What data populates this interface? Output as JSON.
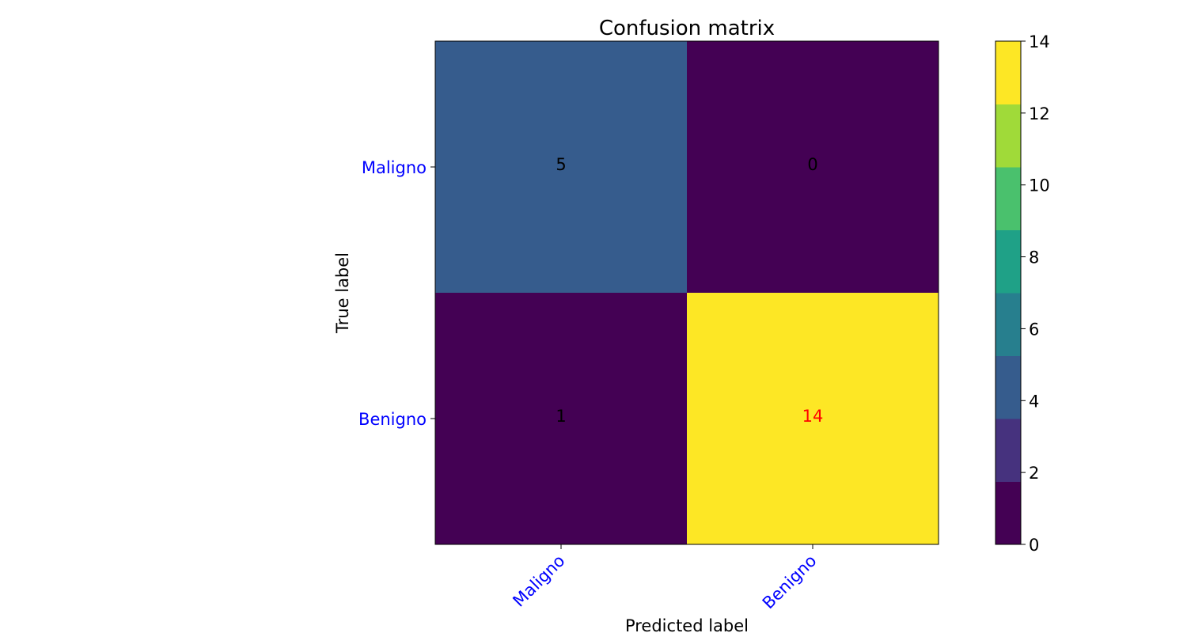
{
  "chart_data": {
    "type": "heatmap",
    "title": "Confusion matrix",
    "xlabel": "Predicted label",
    "ylabel": "True label",
    "x_categories": [
      "Maligno",
      "Benigno"
    ],
    "y_categories": [
      "Maligno",
      "Benigno"
    ],
    "matrix": [
      [
        5,
        0
      ],
      [
        1,
        14
      ]
    ],
    "colormap": "viridis",
    "colorbar": {
      "range": [
        0,
        14
      ],
      "ticks": [
        0,
        2,
        4,
        6,
        8,
        10,
        12,
        14
      ],
      "bands": [
        "#440154",
        "#46327e",
        "#365c8d",
        "#277f8e",
        "#1fa187",
        "#4ac16d",
        "#a0da39",
        "#fde725"
      ]
    },
    "tick_label_color": "#0000ff",
    "cell_text_colors": [
      [
        "#000000",
        "#000000"
      ],
      [
        "#000000",
        "#ff0000"
      ]
    ],
    "grid": false
  }
}
